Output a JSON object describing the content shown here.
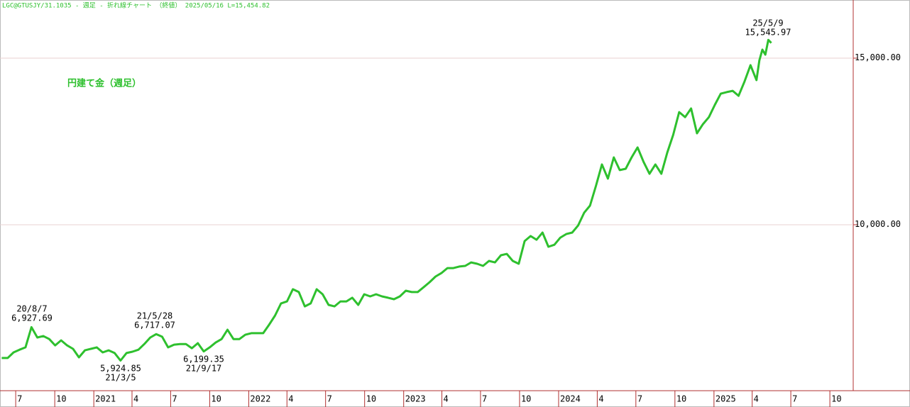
{
  "chart_data": {
    "type": "line",
    "header": "LGC@GTUSJY/31.1035 - 週足 - 折れ線チャート （終値） 2025/05/16 L=15,454.82",
    "title": "円建て金（週足）",
    "x": [
      "2020-05-29",
      "2020-06-12",
      "2020-06-26",
      "2020-07-10",
      "2020-07-24",
      "2020-08-07",
      "2020-08-21",
      "2020-09-04",
      "2020-09-18",
      "2020-10-02",
      "2020-10-16",
      "2020-10-30",
      "2020-11-13",
      "2020-11-27",
      "2020-12-11",
      "2020-12-25",
      "2021-01-08",
      "2021-01-22",
      "2021-02-05",
      "2021-02-19",
      "2021-03-05",
      "2021-03-19",
      "2021-04-02",
      "2021-04-16",
      "2021-04-30",
      "2021-05-14",
      "2021-05-28",
      "2021-06-11",
      "2021-06-25",
      "2021-07-09",
      "2021-07-23",
      "2021-08-06",
      "2021-08-20",
      "2021-09-03",
      "2021-09-17",
      "2021-10-01",
      "2021-10-15",
      "2021-10-29",
      "2021-11-12",
      "2021-11-26",
      "2021-12-10",
      "2021-12-24",
      "2022-01-07",
      "2022-01-21",
      "2022-02-04",
      "2022-02-18",
      "2022-03-04",
      "2022-03-18",
      "2022-04-01",
      "2022-04-15",
      "2022-04-29",
      "2022-05-13",
      "2022-05-27",
      "2022-06-10",
      "2022-06-24",
      "2022-07-08",
      "2022-07-22",
      "2022-08-05",
      "2022-08-19",
      "2022-09-02",
      "2022-09-16",
      "2022-09-30",
      "2022-10-14",
      "2022-10-28",
      "2022-11-11",
      "2022-11-25",
      "2022-12-09",
      "2022-12-23",
      "2023-01-06",
      "2023-01-20",
      "2023-02-03",
      "2023-02-17",
      "2023-03-03",
      "2023-03-17",
      "2023-03-31",
      "2023-04-14",
      "2023-04-28",
      "2023-05-12",
      "2023-05-26",
      "2023-06-09",
      "2023-06-23",
      "2023-07-07",
      "2023-07-21",
      "2023-08-04",
      "2023-08-18",
      "2023-09-01",
      "2023-09-15",
      "2023-09-29",
      "2023-10-13",
      "2023-10-27",
      "2023-11-10",
      "2023-11-24",
      "2023-12-08",
      "2023-12-22",
      "2024-01-05",
      "2024-01-19",
      "2024-02-02",
      "2024-02-16",
      "2024-03-01",
      "2024-03-15",
      "2024-03-29",
      "2024-04-12",
      "2024-04-26",
      "2024-05-10",
      "2024-05-24",
      "2024-06-07",
      "2024-06-21",
      "2024-07-05",
      "2024-07-19",
      "2024-08-02",
      "2024-08-16",
      "2024-08-30",
      "2024-09-13",
      "2024-09-27",
      "2024-10-11",
      "2024-10-25",
      "2024-11-08",
      "2024-11-22",
      "2024-12-06",
      "2024-12-20",
      "2025-01-03",
      "2025-01-17",
      "2025-01-31",
      "2025-02-14",
      "2025-02-28",
      "2025-03-14",
      "2025-03-28",
      "2025-04-11",
      "2025-04-18",
      "2025-04-25",
      "2025-05-02",
      "2025-05-09",
      "2025-05-16"
    ],
    "series": [
      {
        "name": "円建て金（週足）",
        "color": "#2ec02e",
        "values": [
          6000,
          6000,
          6170,
          6250,
          6320,
          6927.69,
          6615,
          6660,
          6570,
          6380,
          6530,
          6380,
          6275,
          6020,
          6230,
          6275,
          6320,
          6170,
          6230,
          6150,
          5924.85,
          6150,
          6190,
          6250,
          6420,
          6615,
          6717.07,
          6640,
          6320,
          6400,
          6420,
          6420,
          6295,
          6445,
          6199.35,
          6320,
          6465,
          6570,
          6850,
          6570,
          6570,
          6700,
          6745,
          6745,
          6745,
          7000,
          7275,
          7640,
          7700,
          8065,
          7980,
          7550,
          7640,
          8065,
          7915,
          7595,
          7550,
          7700,
          7700,
          7810,
          7595,
          7915,
          7850,
          7915,
          7850,
          7810,
          7765,
          7850,
          8020,
          7980,
          7980,
          8125,
          8275,
          8445,
          8550,
          8700,
          8700,
          8745,
          8765,
          8870,
          8830,
          8765,
          8915,
          8870,
          9085,
          9125,
          8915,
          8830,
          9510,
          9660,
          9550,
          9765,
          9340,
          9400,
          9615,
          9720,
          9765,
          9980,
          10360,
          10575,
          11170,
          11810,
          11385,
          12020,
          11640,
          11680,
          12020,
          12320,
          11890,
          11530,
          11810,
          11530,
          12170,
          12700,
          13380,
          13230,
          13490,
          12745,
          13020,
          13230,
          13595,
          13935,
          13980,
          14020,
          13870,
          14300,
          14790,
          14340,
          14935,
          15255,
          15105,
          15545.97,
          15454.82
        ]
      }
    ],
    "annotations": [
      {
        "date": "20/8/7",
        "value": "6,927.69"
      },
      {
        "date": "21/3/5",
        "value": "5,924.85"
      },
      {
        "date": "21/5/28",
        "value": "6,717.07"
      },
      {
        "date": "21/9/17",
        "value": "6,199.35"
      },
      {
        "date": "25/5/9",
        "value": "15,545.97"
      }
    ],
    "xlim": [
      "2020-05-25",
      "2025-11-25"
    ],
    "xticks": [
      {
        "value": "2020-07-01",
        "label": "7"
      },
      {
        "value": "2020-10-01",
        "label": "10"
      },
      {
        "value": "2021-01-01",
        "label": "2021"
      },
      {
        "value": "2021-04-01",
        "label": "4"
      },
      {
        "value": "2021-07-01",
        "label": "7"
      },
      {
        "value": "2021-10-01",
        "label": "10"
      },
      {
        "value": "2022-01-01",
        "label": "2022"
      },
      {
        "value": "2022-04-01",
        "label": "4"
      },
      {
        "value": "2022-07-01",
        "label": "7"
      },
      {
        "value": "2022-10-01",
        "label": "10"
      },
      {
        "value": "2023-01-01",
        "label": "2023"
      },
      {
        "value": "2023-04-01",
        "label": "4"
      },
      {
        "value": "2023-07-01",
        "label": "7"
      },
      {
        "value": "2023-10-01",
        "label": "10"
      },
      {
        "value": "2024-01-01",
        "label": "2024"
      },
      {
        "value": "2024-04-01",
        "label": "4"
      },
      {
        "value": "2024-07-01",
        "label": "7"
      },
      {
        "value": "2024-10-01",
        "label": "10"
      },
      {
        "value": "2025-01-01",
        "label": "2025"
      },
      {
        "value": "2025-04-01",
        "label": "4"
      },
      {
        "value": "2025-07-01",
        "label": "7"
      },
      {
        "value": "2025-10-01",
        "label": "10"
      }
    ],
    "ylim": [
      5020,
      16745
    ],
    "yticks": [
      {
        "value": 10000,
        "label": "10,000.00"
      },
      {
        "value": 15000,
        "label": "15,000.00"
      }
    ]
  }
}
